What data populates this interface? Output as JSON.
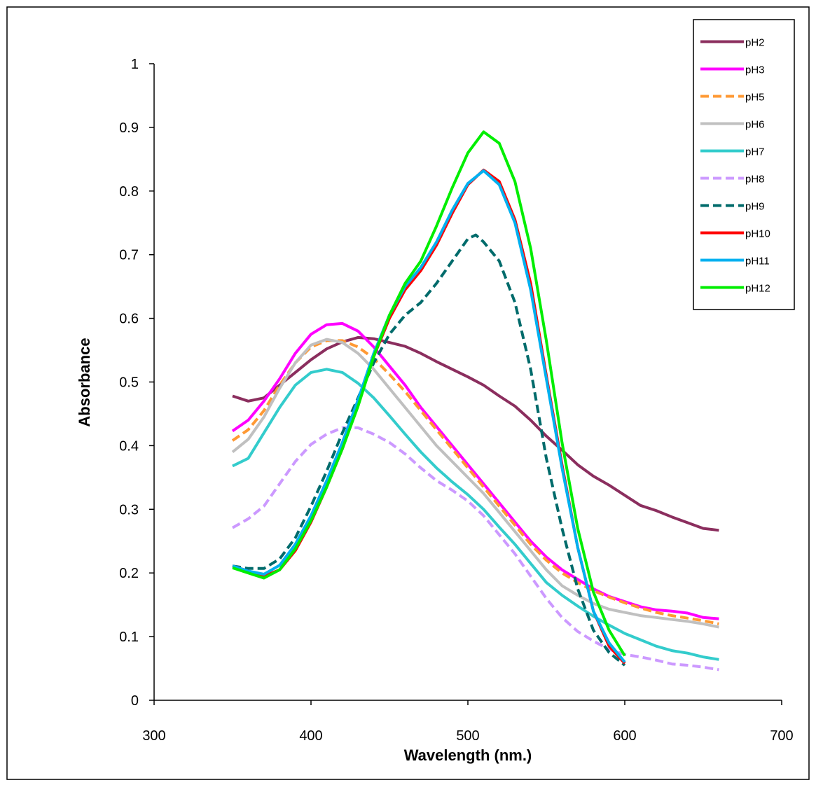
{
  "chart_data": {
    "type": "line",
    "title": "",
    "xlabel": "Wavelength (nm.)",
    "ylabel": "Absorbance",
    "xlim": [
      300,
      700
    ],
    "ylim": [
      0,
      1
    ],
    "xticks": [
      "300",
      "400",
      "500",
      "600",
      "700"
    ],
    "yticks": [
      "0",
      "0.1",
      "0.2",
      "0.3",
      "0.4",
      "0.5",
      "0.6",
      "0.7",
      "0.8",
      "0.9",
      "1"
    ],
    "grid": false,
    "legend_position": "top-right",
    "series": [
      {
        "name": "pH2",
        "color": "#8B2E5E",
        "dash": false,
        "points": [
          [
            350,
            0.478
          ],
          [
            360,
            0.47
          ],
          [
            370,
            0.475
          ],
          [
            380,
            0.495
          ],
          [
            390,
            0.515
          ],
          [
            400,
            0.535
          ],
          [
            410,
            0.552
          ],
          [
            420,
            0.563
          ],
          [
            430,
            0.57
          ],
          [
            440,
            0.568
          ],
          [
            450,
            0.562
          ],
          [
            460,
            0.556
          ],
          [
            470,
            0.545
          ],
          [
            480,
            0.532
          ],
          [
            490,
            0.52
          ],
          [
            500,
            0.508
          ],
          [
            510,
            0.495
          ],
          [
            520,
            0.478
          ],
          [
            530,
            0.462
          ],
          [
            540,
            0.44
          ],
          [
            550,
            0.415
          ],
          [
            560,
            0.393
          ],
          [
            570,
            0.37
          ],
          [
            580,
            0.352
          ],
          [
            590,
            0.338
          ],
          [
            600,
            0.322
          ],
          [
            610,
            0.306
          ],
          [
            620,
            0.298
          ],
          [
            630,
            0.288
          ],
          [
            640,
            0.279
          ],
          [
            650,
            0.27
          ],
          [
            660,
            0.267
          ]
        ]
      },
      {
        "name": "pH3",
        "color": "#FF00FF",
        "dash": false,
        "points": [
          [
            350,
            0.423
          ],
          [
            360,
            0.44
          ],
          [
            370,
            0.47
          ],
          [
            380,
            0.505
          ],
          [
            390,
            0.545
          ],
          [
            400,
            0.575
          ],
          [
            410,
            0.59
          ],
          [
            420,
            0.592
          ],
          [
            430,
            0.58
          ],
          [
            440,
            0.555
          ],
          [
            450,
            0.525
          ],
          [
            460,
            0.495
          ],
          [
            470,
            0.46
          ],
          [
            480,
            0.43
          ],
          [
            490,
            0.4
          ],
          [
            500,
            0.37
          ],
          [
            510,
            0.34
          ],
          [
            520,
            0.31
          ],
          [
            530,
            0.28
          ],
          [
            540,
            0.25
          ],
          [
            550,
            0.225
          ],
          [
            560,
            0.205
          ],
          [
            570,
            0.19
          ],
          [
            580,
            0.175
          ],
          [
            590,
            0.163
          ],
          [
            600,
            0.155
          ],
          [
            610,
            0.147
          ],
          [
            620,
            0.142
          ],
          [
            630,
            0.14
          ],
          [
            640,
            0.137
          ],
          [
            650,
            0.13
          ],
          [
            660,
            0.128
          ]
        ]
      },
      {
        "name": "pH5",
        "color": "#FF9933",
        "dash": true,
        "points": [
          [
            350,
            0.408
          ],
          [
            360,
            0.425
          ],
          [
            370,
            0.455
          ],
          [
            380,
            0.495
          ],
          [
            390,
            0.53
          ],
          [
            400,
            0.555
          ],
          [
            410,
            0.565
          ],
          [
            420,
            0.565
          ],
          [
            430,
            0.555
          ],
          [
            440,
            0.537
          ],
          [
            450,
            0.512
          ],
          [
            460,
            0.485
          ],
          [
            470,
            0.455
          ],
          [
            480,
            0.425
          ],
          [
            490,
            0.395
          ],
          [
            500,
            0.365
          ],
          [
            510,
            0.335
          ],
          [
            520,
            0.305
          ],
          [
            530,
            0.275
          ],
          [
            540,
            0.245
          ],
          [
            550,
            0.22
          ],
          [
            560,
            0.2
          ],
          [
            570,
            0.185
          ],
          [
            580,
            0.172
          ],
          [
            590,
            0.162
          ],
          [
            600,
            0.153
          ],
          [
            610,
            0.145
          ],
          [
            620,
            0.138
          ],
          [
            630,
            0.133
          ],
          [
            640,
            0.129
          ],
          [
            650,
            0.125
          ],
          [
            660,
            0.12
          ]
        ]
      },
      {
        "name": "pH6",
        "color": "#C0C0C0",
        "dash": false,
        "points": [
          [
            350,
            0.39
          ],
          [
            360,
            0.41
          ],
          [
            370,
            0.445
          ],
          [
            380,
            0.49
          ],
          [
            390,
            0.53
          ],
          [
            400,
            0.558
          ],
          [
            410,
            0.567
          ],
          [
            420,
            0.562
          ],
          [
            430,
            0.545
          ],
          [
            440,
            0.52
          ],
          [
            450,
            0.49
          ],
          [
            460,
            0.46
          ],
          [
            470,
            0.43
          ],
          [
            480,
            0.4
          ],
          [
            490,
            0.375
          ],
          [
            500,
            0.35
          ],
          [
            510,
            0.325
          ],
          [
            520,
            0.295
          ],
          [
            530,
            0.265
          ],
          [
            540,
            0.235
          ],
          [
            550,
            0.205
          ],
          [
            560,
            0.18
          ],
          [
            570,
            0.165
          ],
          [
            580,
            0.152
          ],
          [
            590,
            0.143
          ],
          [
            600,
            0.138
          ],
          [
            610,
            0.133
          ],
          [
            620,
            0.13
          ],
          [
            630,
            0.127
          ],
          [
            640,
            0.124
          ],
          [
            650,
            0.12
          ],
          [
            660,
            0.115
          ]
        ]
      },
      {
        "name": "pH7",
        "color": "#33CCCC",
        "dash": false,
        "points": [
          [
            350,
            0.368
          ],
          [
            360,
            0.38
          ],
          [
            370,
            0.42
          ],
          [
            380,
            0.46
          ],
          [
            390,
            0.495
          ],
          [
            400,
            0.515
          ],
          [
            410,
            0.52
          ],
          [
            420,
            0.515
          ],
          [
            430,
            0.498
          ],
          [
            440,
            0.475
          ],
          [
            450,
            0.447
          ],
          [
            460,
            0.418
          ],
          [
            470,
            0.39
          ],
          [
            480,
            0.365
          ],
          [
            490,
            0.343
          ],
          [
            500,
            0.323
          ],
          [
            510,
            0.3
          ],
          [
            520,
            0.272
          ],
          [
            530,
            0.245
          ],
          [
            540,
            0.215
          ],
          [
            550,
            0.185
          ],
          [
            560,
            0.165
          ],
          [
            570,
            0.148
          ],
          [
            580,
            0.132
          ],
          [
            590,
            0.118
          ],
          [
            600,
            0.105
          ],
          [
            610,
            0.095
          ],
          [
            620,
            0.085
          ],
          [
            630,
            0.078
          ],
          [
            640,
            0.074
          ],
          [
            650,
            0.068
          ],
          [
            660,
            0.064
          ]
        ]
      },
      {
        "name": "pH8",
        "color": "#CC99FF",
        "dash": true,
        "points": [
          [
            350,
            0.271
          ],
          [
            360,
            0.285
          ],
          [
            370,
            0.305
          ],
          [
            380,
            0.34
          ],
          [
            390,
            0.375
          ],
          [
            400,
            0.402
          ],
          [
            410,
            0.418
          ],
          [
            420,
            0.428
          ],
          [
            430,
            0.428
          ],
          [
            440,
            0.418
          ],
          [
            450,
            0.405
          ],
          [
            460,
            0.387
          ],
          [
            470,
            0.365
          ],
          [
            480,
            0.345
          ],
          [
            490,
            0.33
          ],
          [
            500,
            0.313
          ],
          [
            510,
            0.29
          ],
          [
            520,
            0.26
          ],
          [
            530,
            0.23
          ],
          [
            540,
            0.195
          ],
          [
            550,
            0.16
          ],
          [
            560,
            0.13
          ],
          [
            570,
            0.108
          ],
          [
            580,
            0.093
          ],
          [
            590,
            0.08
          ],
          [
            600,
            0.072
          ],
          [
            610,
            0.068
          ],
          [
            620,
            0.063
          ],
          [
            630,
            0.057
          ],
          [
            640,
            0.055
          ],
          [
            650,
            0.052
          ],
          [
            660,
            0.048
          ]
        ]
      },
      {
        "name": "pH9",
        "color": "#006B6B",
        "dash": true,
        "points": [
          [
            350,
            0.211
          ],
          [
            360,
            0.207
          ],
          [
            370,
            0.207
          ],
          [
            380,
            0.222
          ],
          [
            390,
            0.255
          ],
          [
            400,
            0.305
          ],
          [
            410,
            0.36
          ],
          [
            420,
            0.42
          ],
          [
            430,
            0.475
          ],
          [
            440,
            0.53
          ],
          [
            450,
            0.575
          ],
          [
            460,
            0.605
          ],
          [
            470,
            0.625
          ],
          [
            480,
            0.655
          ],
          [
            490,
            0.69
          ],
          [
            500,
            0.725
          ],
          [
            505,
            0.731
          ],
          [
            510,
            0.72
          ],
          [
            520,
            0.69
          ],
          [
            530,
            0.625
          ],
          [
            540,
            0.52
          ],
          [
            550,
            0.38
          ],
          [
            560,
            0.27
          ],
          [
            570,
            0.175
          ],
          [
            580,
            0.11
          ],
          [
            590,
            0.075
          ],
          [
            600,
            0.055
          ]
        ]
      },
      {
        "name": "pH10",
        "color": "#FF0000",
        "dash": false,
        "points": [
          [
            350,
            0.211
          ],
          [
            360,
            0.203
          ],
          [
            370,
            0.195
          ],
          [
            380,
            0.205
          ],
          [
            390,
            0.235
          ],
          [
            400,
            0.28
          ],
          [
            410,
            0.335
          ],
          [
            420,
            0.395
          ],
          [
            430,
            0.465
          ],
          [
            440,
            0.54
          ],
          [
            450,
            0.6
          ],
          [
            460,
            0.645
          ],
          [
            470,
            0.675
          ],
          [
            480,
            0.715
          ],
          [
            490,
            0.765
          ],
          [
            500,
            0.81
          ],
          [
            510,
            0.833
          ],
          [
            520,
            0.815
          ],
          [
            530,
            0.755
          ],
          [
            540,
            0.655
          ],
          [
            550,
            0.51
          ],
          [
            560,
            0.37
          ],
          [
            570,
            0.24
          ],
          [
            580,
            0.14
          ],
          [
            590,
            0.085
          ],
          [
            600,
            0.058
          ]
        ]
      },
      {
        "name": "pH11",
        "color": "#00B0F0",
        "dash": false,
        "points": [
          [
            350,
            0.211
          ],
          [
            360,
            0.203
          ],
          [
            370,
            0.198
          ],
          [
            380,
            0.212
          ],
          [
            390,
            0.245
          ],
          [
            400,
            0.29
          ],
          [
            410,
            0.345
          ],
          [
            420,
            0.405
          ],
          [
            430,
            0.472
          ],
          [
            440,
            0.545
          ],
          [
            450,
            0.605
          ],
          [
            460,
            0.65
          ],
          [
            470,
            0.68
          ],
          [
            480,
            0.72
          ],
          [
            490,
            0.77
          ],
          [
            500,
            0.812
          ],
          [
            510,
            0.832
          ],
          [
            520,
            0.81
          ],
          [
            530,
            0.75
          ],
          [
            540,
            0.645
          ],
          [
            550,
            0.505
          ],
          [
            560,
            0.365
          ],
          [
            570,
            0.24
          ],
          [
            580,
            0.14
          ],
          [
            590,
            0.09
          ],
          [
            600,
            0.06
          ]
        ]
      },
      {
        "name": "pH12",
        "color": "#00EE00",
        "dash": false,
        "points": [
          [
            350,
            0.208
          ],
          [
            360,
            0.2
          ],
          [
            370,
            0.192
          ],
          [
            380,
            0.205
          ],
          [
            390,
            0.238
          ],
          [
            400,
            0.282
          ],
          [
            410,
            0.335
          ],
          [
            420,
            0.395
          ],
          [
            430,
            0.462
          ],
          [
            440,
            0.54
          ],
          [
            450,
            0.605
          ],
          [
            460,
            0.655
          ],
          [
            470,
            0.69
          ],
          [
            480,
            0.745
          ],
          [
            490,
            0.805
          ],
          [
            500,
            0.86
          ],
          [
            510,
            0.893
          ],
          [
            520,
            0.875
          ],
          [
            530,
            0.815
          ],
          [
            540,
            0.71
          ],
          [
            550,
            0.565
          ],
          [
            560,
            0.405
          ],
          [
            570,
            0.27
          ],
          [
            580,
            0.17
          ],
          [
            590,
            0.11
          ],
          [
            600,
            0.07
          ]
        ]
      }
    ]
  }
}
